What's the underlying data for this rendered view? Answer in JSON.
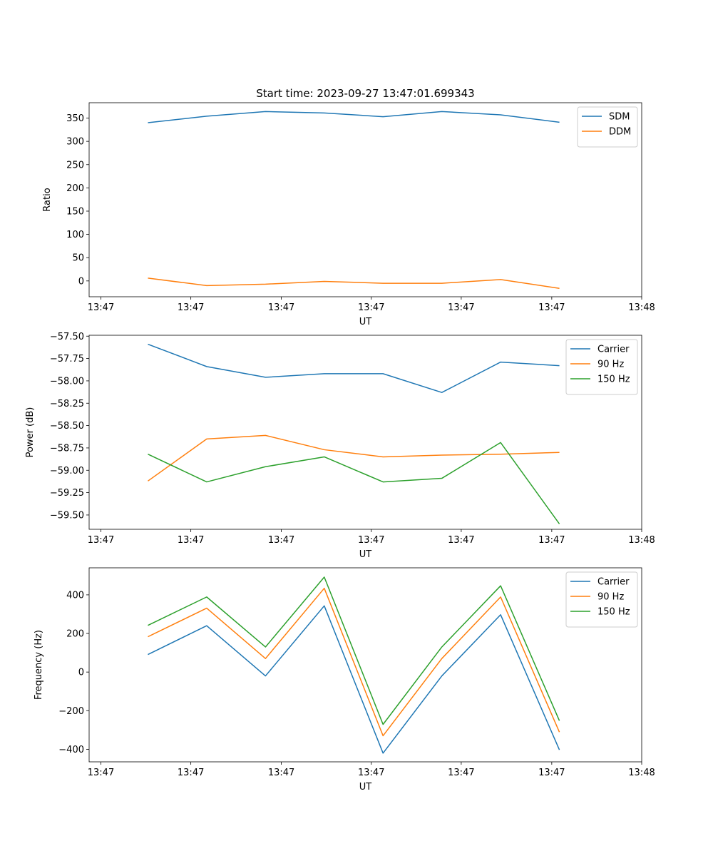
{
  "figure_title": "Start time: 2023-09-27 13:47:01.699343",
  "colors": {
    "c0": "#1f77b4",
    "c1": "#ff7f0e",
    "c2": "#2ca02c"
  },
  "chart_data": [
    {
      "type": "line",
      "title": "Start time: 2023-09-27 13:47:01.699343",
      "xlabel": "UT",
      "ylabel": "Ratio",
      "xlim": [
        0,
        9.4
      ],
      "ylim": [
        -34,
        383
      ],
      "x": [
        1,
        2,
        3,
        4,
        5,
        6,
        7,
        8
      ],
      "x_ticks": [
        0.2,
        1.73,
        3.27,
        4.8,
        6.33,
        7.87,
        9.4
      ],
      "x_tick_labels": [
        "13:47",
        "13:47",
        "13:47",
        "13:47",
        "13:47",
        "13:47",
        "13:48"
      ],
      "y_ticks": [
        0,
        50,
        100,
        150,
        200,
        250,
        300,
        350
      ],
      "y_tick_labels": [
        "0",
        "50",
        "100",
        "150",
        "200",
        "250",
        "300",
        "350"
      ],
      "legend": "upper right",
      "series": [
        {
          "name": "SDM",
          "color": "#1f77b4",
          "values": [
            340,
            354,
            364,
            361,
            353,
            364,
            357,
            341
          ]
        },
        {
          "name": "DDM",
          "color": "#ff7f0e",
          "values": [
            6,
            -10,
            -7,
            -1,
            -5,
            -5,
            3,
            -16
          ]
        }
      ]
    },
    {
      "type": "line",
      "title": "",
      "xlabel": "UT",
      "ylabel": "Power (dB)",
      "xlim": [
        0,
        9.4
      ],
      "ylim": [
        -59.66,
        -57.49
      ],
      "x": [
        1,
        2,
        3,
        4,
        5,
        6,
        7,
        8
      ],
      "x_ticks": [
        0.2,
        1.73,
        3.27,
        4.8,
        6.33,
        7.87,
        9.4
      ],
      "x_tick_labels": [
        "13:47",
        "13:47",
        "13:47",
        "13:47",
        "13:47",
        "13:47",
        "13:48"
      ],
      "y_ticks": [
        -57.5,
        -57.75,
        -58.0,
        -58.25,
        -58.5,
        -58.75,
        -59.0,
        -59.25,
        -59.5
      ],
      "y_tick_labels": [
        "−57.50",
        "−57.75",
        "−58.00",
        "−58.25",
        "−58.50",
        "−58.75",
        "−59.00",
        "−59.25",
        "−59.50"
      ],
      "legend": "upper right",
      "series": [
        {
          "name": "Carrier",
          "color": "#1f77b4",
          "values": [
            -57.59,
            -57.84,
            -57.96,
            -57.92,
            -57.92,
            -58.13,
            -57.79,
            -57.83
          ]
        },
        {
          "name": "90 Hz",
          "color": "#ff7f0e",
          "values": [
            -59.12,
            -58.65,
            -58.61,
            -58.77,
            -58.85,
            -58.83,
            -58.82,
            -58.8
          ]
        },
        {
          "name": "150 Hz",
          "color": "#2ca02c",
          "values": [
            -58.82,
            -59.13,
            -58.96,
            -58.85,
            -59.13,
            -59.09,
            -58.69,
            -59.6
          ]
        }
      ]
    },
    {
      "type": "line",
      "title": "",
      "xlabel": "UT",
      "ylabel": "Frequency (Hz)",
      "xlim": [
        0,
        9.4
      ],
      "ylim": [
        -465,
        540
      ],
      "x": [
        1,
        2,
        3,
        4,
        5,
        6,
        7,
        8
      ],
      "x_ticks": [
        0.2,
        1.73,
        3.27,
        4.8,
        6.33,
        7.87,
        9.4
      ],
      "x_tick_labels": [
        "13:47",
        "13:47",
        "13:47",
        "13:47",
        "13:47",
        "13:47",
        "13:48"
      ],
      "y_ticks": [
        400,
        200,
        0,
        -200,
        -400
      ],
      "y_tick_labels": [
        "400",
        "200",
        "0",
        "−200",
        "−400"
      ],
      "legend": "upper right",
      "series": [
        {
          "name": "Carrier",
          "color": "#1f77b4",
          "values": [
            91,
            240,
            -20,
            343,
            -420,
            -20,
            297,
            -403
          ]
        },
        {
          "name": "90 Hz",
          "color": "#ff7f0e",
          "values": [
            183,
            331,
            70,
            434,
            -330,
            70,
            389,
            -311
          ]
        },
        {
          "name": "150 Hz",
          "color": "#2ca02c",
          "values": [
            242,
            389,
            130,
            492,
            -271,
            130,
            447,
            -252
          ]
        }
      ]
    }
  ]
}
